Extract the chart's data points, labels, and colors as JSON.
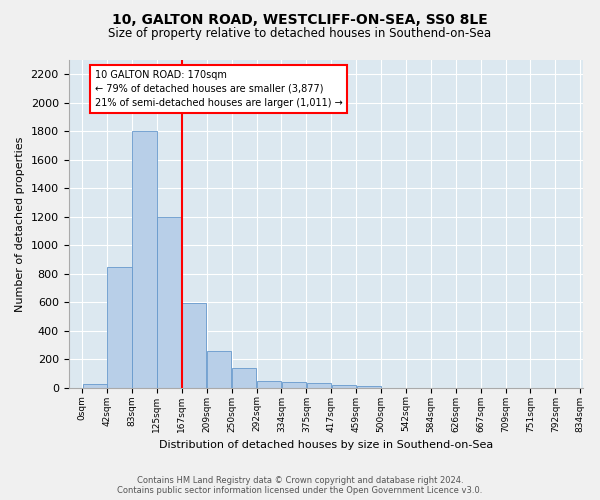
{
  "title": "10, GALTON ROAD, WESTCLIFF-ON-SEA, SS0 8LE",
  "subtitle": "Size of property relative to detached houses in Southend-on-Sea",
  "xlabel": "Distribution of detached houses by size in Southend-on-Sea",
  "ylabel": "Number of detached properties",
  "bins": [
    "0sqm",
    "42sqm",
    "83sqm",
    "125sqm",
    "167sqm",
    "209sqm",
    "250sqm",
    "292sqm",
    "334sqm",
    "375sqm",
    "417sqm",
    "459sqm",
    "500sqm",
    "542sqm",
    "584sqm",
    "626sqm",
    "667sqm",
    "709sqm",
    "751sqm",
    "792sqm",
    "834sqm"
  ],
  "bar_heights": [
    25,
    845,
    1800,
    1200,
    595,
    255,
    135,
    45,
    40,
    30,
    20,
    10,
    0,
    0,
    0,
    0,
    0,
    0,
    0,
    0
  ],
  "bar_color": "#b8cfe8",
  "bar_edgecolor": "#6699cc",
  "vline_color": "red",
  "annotation_title": "10 GALTON ROAD: 170sqm",
  "annotation_line1": "← 79% of detached houses are smaller (3,877)",
  "annotation_line2": "21% of semi-detached houses are larger (1,011) →",
  "ylim": [
    0,
    2300
  ],
  "yticks": [
    0,
    200,
    400,
    600,
    800,
    1000,
    1200,
    1400,
    1600,
    1800,
    2000,
    2200
  ],
  "bin_width": 41.5,
  "footer_line1": "Contains HM Land Registry data © Crown copyright and database right 2024.",
  "footer_line2": "Contains public sector information licensed under the Open Government Licence v3.0.",
  "plot_background": "#dce8f0"
}
